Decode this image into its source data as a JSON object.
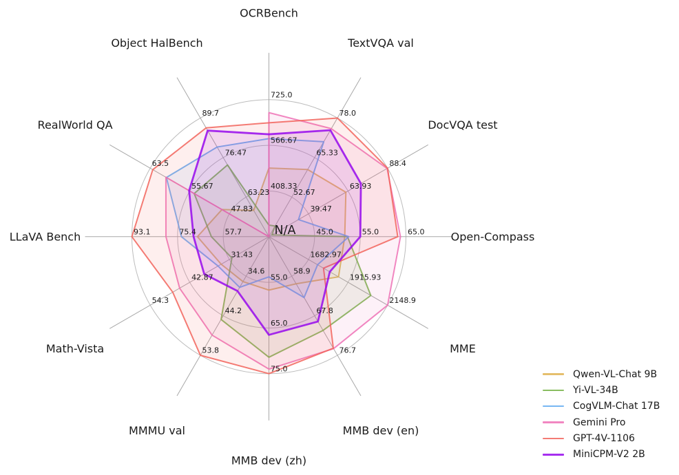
{
  "chart_data": {
    "type": "radar",
    "title": "",
    "center_label": "N/A",
    "grid": {
      "rings": 3,
      "ring_color": "#bcbcbc",
      "spoke_color": "#a8a8a8",
      "background": "#ffffff",
      "legend_position": "bottom-right",
      "text_color": "#1a1a1a"
    },
    "axes": [
      {
        "label": "OCRBench",
        "min": 250,
        "max": 725,
        "ticks": [
          "408.33",
          "566.67",
          "725.0"
        ]
      },
      {
        "label": "TextVQA val",
        "min": 40,
        "max": 78,
        "ticks": [
          "52.67",
          "65.33",
          "78.0"
        ]
      },
      {
        "label": "DocVQA test",
        "min": 15,
        "max": 88.4,
        "ticks": [
          "39.47",
          "63.93",
          "88.4"
        ]
      },
      {
        "label": "Open-Compass",
        "min": 35,
        "max": 65,
        "ticks": [
          "45.0",
          "55.0",
          "65.0"
        ]
      },
      {
        "label": "MME",
        "min": 1450,
        "max": 2148.9,
        "ticks": [
          "1682.97",
          "1915.93",
          "2148.9"
        ]
      },
      {
        "label": "MMB dev (en)",
        "min": 50,
        "max": 76.7,
        "ticks": [
          "58.9",
          "67.8",
          "76.7"
        ]
      },
      {
        "label": "MMB dev (zh)",
        "min": 45,
        "max": 75,
        "ticks": [
          "55.0",
          "65.0",
          "75.0"
        ]
      },
      {
        "label": "MMMU val",
        "min": 25,
        "max": 53.8,
        "ticks": [
          "34.6",
          "44.2",
          "53.8"
        ]
      },
      {
        "label": "Math-Vista",
        "min": 20,
        "max": 54.3,
        "ticks": [
          "31.43",
          "42.87",
          "54.3"
        ]
      },
      {
        "label": "LLaVA Bench",
        "min": 40,
        "max": 93.1,
        "ticks": [
          "57.7",
          "75.4",
          "93.1"
        ]
      },
      {
        "label": "RealWorld QA",
        "min": 40,
        "max": 63.5,
        "ticks": [
          "47.83",
          "55.67",
          "63.5"
        ]
      },
      {
        "label": "Object HalBench",
        "min": 50,
        "max": 89.7,
        "ticks": [
          "63.23",
          "76.47",
          "89.7"
        ]
      }
    ],
    "series": [
      {
        "name": "Qwen-VL-Chat 9B",
        "color": "#e0b454",
        "emphasis": false,
        "values": [
          488,
          61.5,
          62.6,
          51.6,
          1860.0,
          60.6,
          56.7,
          35.9,
          33.8,
          67.7,
          49.3,
          58.8
        ]
      },
      {
        "name": "Yi-VL-34B",
        "color": "#74b244",
        "emphasis": false,
        "values": [
          290,
          43.4,
          16.9,
          52.2,
          2050.2,
          71.1,
          71.4,
          45.1,
          30.7,
          62.3,
          54.8,
          74.0
        ]
      },
      {
        "name": "CogVLM-Chat 17B",
        "color": "#5fa9f1",
        "emphasis": false,
        "values": [
          590,
          70.4,
          33.3,
          52.5,
          1736.6,
          63.7,
          53.8,
          37.3,
          34.7,
          73.9,
          60.3,
          80.0
        ]
      },
      {
        "name": "Gemini Pro",
        "color": "#ef72b6",
        "emphasis": false,
        "values": [
          680,
          74.6,
          88.1,
          63.8,
          2148.9,
          75.2,
          74.0,
          48.9,
          45.8,
          79.9,
          60.4,
          null
        ]
      },
      {
        "name": "GPT-4V-1106",
        "color": "#f2645c",
        "emphasis": false,
        "values": [
          645,
          78.0,
          88.4,
          63.2,
          1771.5,
          75.1,
          75.0,
          53.8,
          47.8,
          93.1,
          63.0,
          86.4
        ]
      },
      {
        "name": "MiniCPM-V2 2B",
        "color": "#9709ec",
        "emphasis": true,
        "values": [
          605,
          74.1,
          71.9,
          55.0,
          1808.6,
          69.1,
          66.5,
          38.2,
          38.7,
          69.2,
          55.8,
          85.5
        ]
      }
    ]
  }
}
